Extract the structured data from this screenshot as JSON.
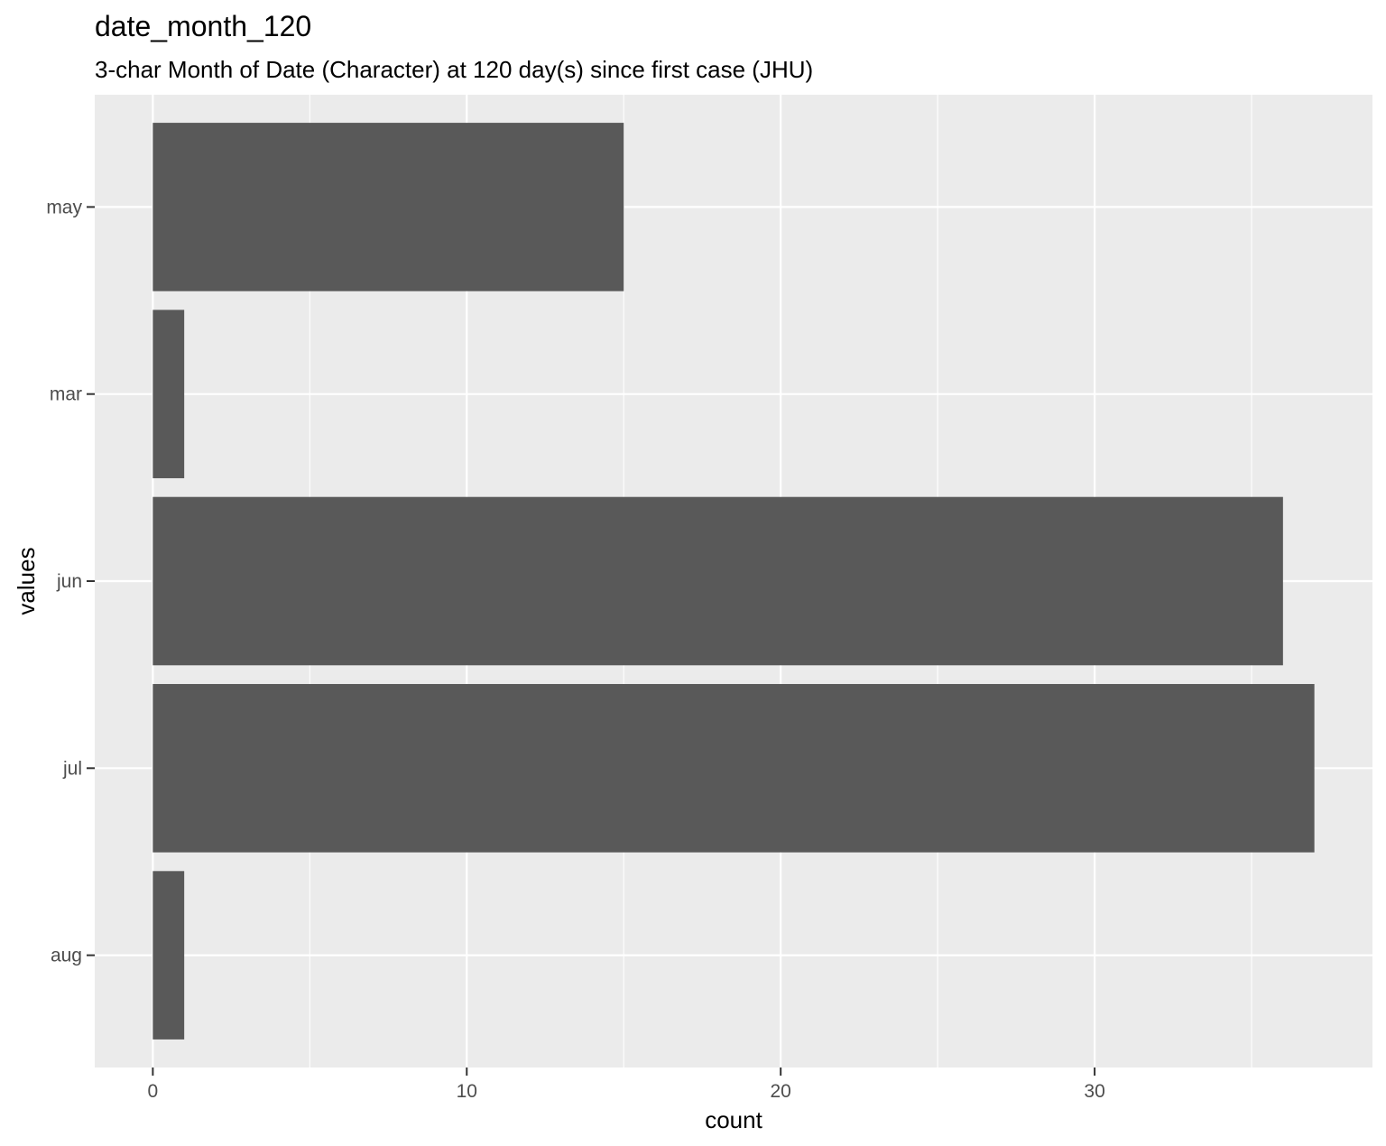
{
  "chart_data": {
    "type": "bar",
    "orientation": "horizontal",
    "title": "date_month_120",
    "subtitle": "3-char Month of Date (Character) at 120 day(s) since first case (JHU)",
    "xlabel": "count",
    "ylabel": "values",
    "categories": [
      "aug",
      "jul",
      "jun",
      "mar",
      "may"
    ],
    "values": [
      1,
      37,
      36,
      1,
      15
    ],
    "xlim": [
      -1.85,
      38.85
    ],
    "xticks": [
      0,
      10,
      20,
      30
    ],
    "x_minor_gridlines": [
      5,
      15,
      25,
      35
    ],
    "grid": true,
    "legend": "none",
    "colors": {
      "bar": "#595959",
      "panel_background": "#ebebeb",
      "gridline": "#ffffff",
      "tick_label": "#4d4d4d",
      "text": "#000000"
    }
  }
}
